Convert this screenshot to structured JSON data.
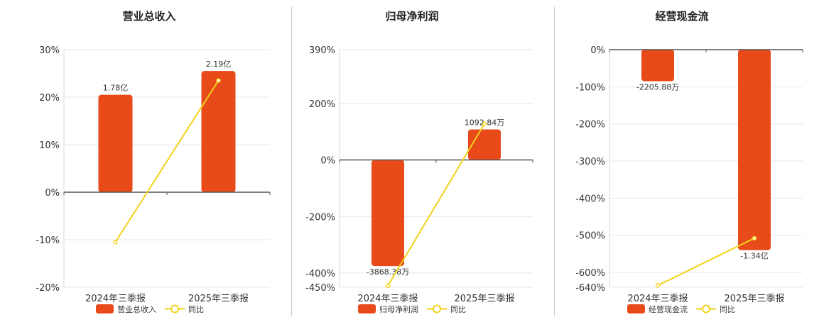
{
  "colors": {
    "bar": "#e84a1a",
    "line": "#f3d21a",
    "grid": "#e6e6f0",
    "axis": "#555555",
    "divider": "#c8c8c8"
  },
  "chart_data": [
    {
      "type": "bar",
      "title": "营业总收入",
      "categories": [
        "2024年三季报",
        "2025年三季报"
      ],
      "series": [
        {
          "name": "营业总收入",
          "type": "bar",
          "values": [
            20.5,
            25.5
          ],
          "labels": [
            "1.78亿",
            "2.19亿"
          ]
        },
        {
          "name": "同比",
          "type": "line",
          "values": [
            -10.5,
            23.5
          ]
        }
      ],
      "ylim": [
        -20,
        30
      ],
      "yticks": [
        -20,
        -10,
        0,
        10,
        20,
        30
      ],
      "ytick_labels": [
        "-20%",
        "-10%",
        "0%",
        "10%",
        "20%",
        "30%"
      ],
      "grid": true,
      "legend": "bottom"
    },
    {
      "type": "bar",
      "title": "归母净利润",
      "categories": [
        "2024年三季报",
        "2025年三季报"
      ],
      "series": [
        {
          "name": "归母净利润",
          "type": "bar",
          "values": [
            -375,
            108
          ],
          "labels": [
            "-3868.38万",
            "1092.84万"
          ]
        },
        {
          "name": "同比",
          "type": "line",
          "values": [
            -445,
            128
          ]
        }
      ],
      "ylim": [
        -450,
        390
      ],
      "yticks": [
        -450,
        -400,
        -200,
        0,
        200,
        390
      ],
      "ytick_labels": [
        "-450%",
        "-400%",
        "-200%",
        "0%",
        "200%",
        "390%"
      ],
      "grid": true,
      "legend": "bottom"
    },
    {
      "type": "bar",
      "title": "经营现金流",
      "categories": [
        "2024年三季报",
        "2025年三季报"
      ],
      "series": [
        {
          "name": "经营现金流",
          "type": "bar",
          "values": [
            -85,
            -540
          ],
          "labels": [
            "-2205.88万",
            "-1.34亿"
          ]
        },
        {
          "name": "同比",
          "type": "line",
          "values": [
            -635,
            -508
          ]
        }
      ],
      "ylim": [
        -640,
        0
      ],
      "yticks": [
        -640,
        -600,
        -500,
        -400,
        -300,
        -200,
        -100,
        0
      ],
      "ytick_labels": [
        "-640%",
        "-600%",
        "-500%",
        "-400%",
        "-300%",
        "-200%",
        "-100%",
        "0%"
      ],
      "grid": true,
      "legend": "bottom"
    }
  ]
}
